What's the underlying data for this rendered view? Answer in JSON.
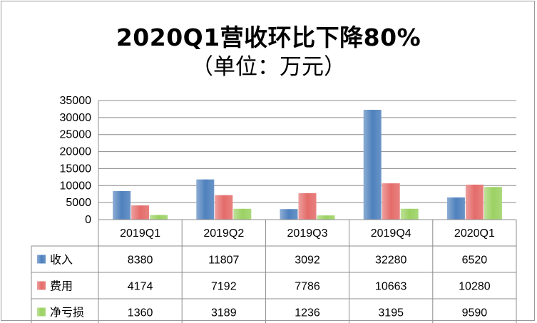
{
  "title": "2020Q1营收环比下降80%",
  "subtitle": "（单位：万元）",
  "colors": {
    "income": "#4f81bd",
    "expense": "#e46c6a",
    "loss": "#9bd162"
  },
  "chart_data": {
    "type": "bar",
    "title": "2020Q1营收环比下降80%",
    "subtitle": "（单位：万元）",
    "categories": [
      "2019Q1",
      "2019Q2",
      "2019Q3",
      "2019Q4",
      "2020Q1"
    ],
    "series": [
      {
        "name": "收入",
        "values": [
          8380,
          11807,
          3092,
          32280,
          6520
        ]
      },
      {
        "name": "费用",
        "values": [
          4174,
          7192,
          7786,
          10663,
          10280
        ]
      },
      {
        "name": "净亏损",
        "values": [
          1360,
          3189,
          1236,
          3195,
          9590
        ]
      }
    ],
    "ylim": [
      0,
      35000
    ],
    "yticks": [
      0,
      5000,
      10000,
      15000,
      20000,
      25000,
      30000,
      35000
    ],
    "grid": true,
    "legend": "data-table"
  }
}
